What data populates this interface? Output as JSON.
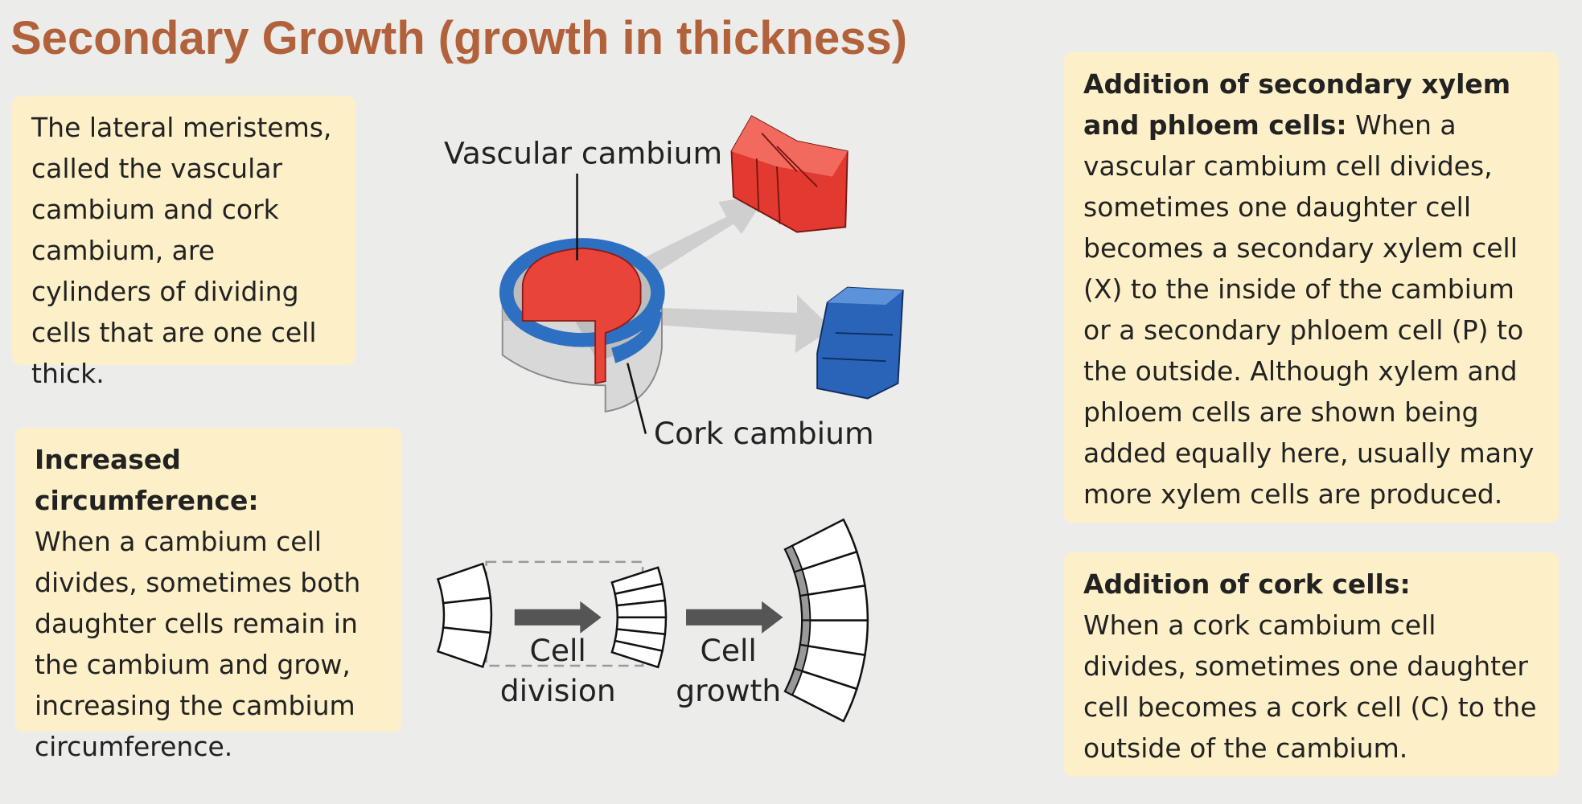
{
  "title": "Secondary Growth (growth in thickness)",
  "boxes": [
    {
      "heading": null,
      "body": "The lateral meristems, called the vascular cambium and cork cambium, are cylinders of dividing cells that are one cell thick."
    },
    {
      "heading": "Increased circumference:",
      "body": "When a cambium cell divides, sometimes both daughter cells remain in the cambium and grow, increasing the cambium circumference."
    },
    {
      "heading": "Addition of secondary xylem and phloem cells:",
      "body": "When a vascular cambium cell divides, sometimes one daughter cell becomes a secondary xylem cell (X) to the inside of the cambium or a secondary phloem cell (P) to the outside. Although xylem and phloem cells are shown being added equally here, usually many more xylem cells are produced."
    },
    {
      "heading": "Addition of cork cells:",
      "body": "When a cork cambium cell divides, sometimes one daughter cell becomes a cork cell (C) to the outside of the cambium."
    }
  ],
  "labels": {
    "vascular": "Vascular cambium",
    "cork": "Cork cambium",
    "division": [
      "Cell",
      "division"
    ],
    "growth": [
      "Cell",
      "growth"
    ]
  }
}
